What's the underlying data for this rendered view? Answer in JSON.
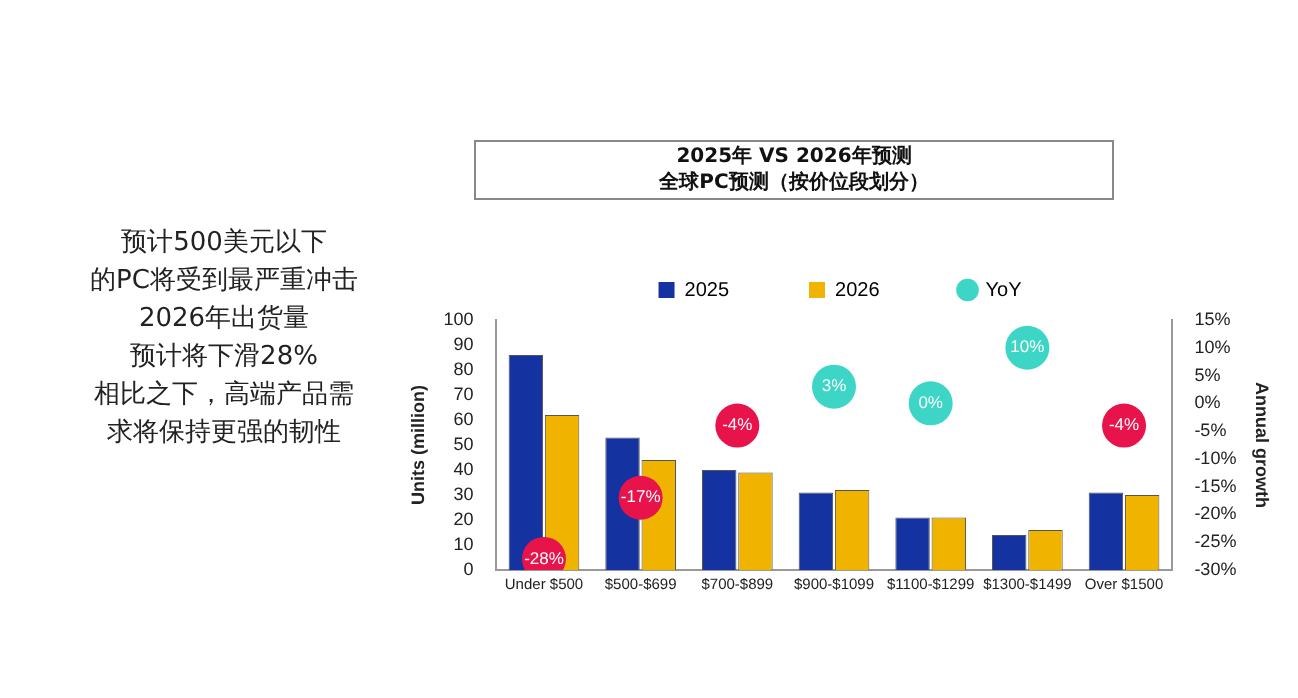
{
  "chart_data": {
    "type": "bar",
    "title": "2025年 VS 2026年预测",
    "subtitle": "全球PC预测（按价位段划分）",
    "ylabel": "Units (million)",
    "y2label": "Annual growth",
    "categories": [
      "Under $500",
      "$500-$699",
      "$700-$899",
      "$900-$1099",
      "$1100-$1299",
      "$1300-$1499",
      "Over $1500"
    ],
    "series": [
      {
        "name": "2025",
        "color": "#1432a0",
        "values": [
          86,
          53,
          40,
          31,
          21,
          14,
          31
        ]
      },
      {
        "name": "2026",
        "color": "#f0b400",
        "values": [
          62,
          44,
          39,
          32,
          21,
          16,
          30
        ]
      },
      {
        "name": "YoY",
        "type": "scatter",
        "axis": "y2",
        "color": "#3dd6c6",
        "colors": [
          "#e8134b",
          "#e8134b",
          "#e8134b",
          "#3dd6c6",
          "#3dd6c6",
          "#3dd6c6",
          "#e8134b"
        ],
        "values": [
          -28,
          -17,
          -4,
          3,
          0,
          10,
          -4
        ],
        "value_labels": [
          "-28%",
          "-17%",
          "-4%",
          "3%",
          "0%",
          "10%",
          "-4%"
        ]
      }
    ],
    "ylim": [
      0,
      100
    ],
    "yticks": [
      0,
      10,
      20,
      30,
      40,
      50,
      60,
      70,
      80,
      90,
      100
    ],
    "y2lim": [
      -30,
      15
    ],
    "y2ticks": [
      {
        "value": -30,
        "label": "-30%"
      },
      {
        "value": -25,
        "label": "-25%"
      },
      {
        "value": -20,
        "label": "-20%"
      },
      {
        "value": -15,
        "label": "-15%"
      },
      {
        "value": -10,
        "label": "-10%"
      },
      {
        "value": -5,
        "label": "-5%"
      },
      {
        "value": 0,
        "label": "0%"
      },
      {
        "value": 5,
        "label": "5%"
      },
      {
        "value": 10,
        "label": "10%"
      },
      {
        "value": 15,
        "label": "15%"
      }
    ],
    "legend": "top",
    "marker": "circle",
    "grid": false,
    "annotations": [
      "预计500美元以下",
      "的PC将受到最严重冲击",
      "2026年出货量",
      "预计将下滑28%",
      "相比之下，高端产品需",
      "求将保持更强的韧性"
    ]
  }
}
